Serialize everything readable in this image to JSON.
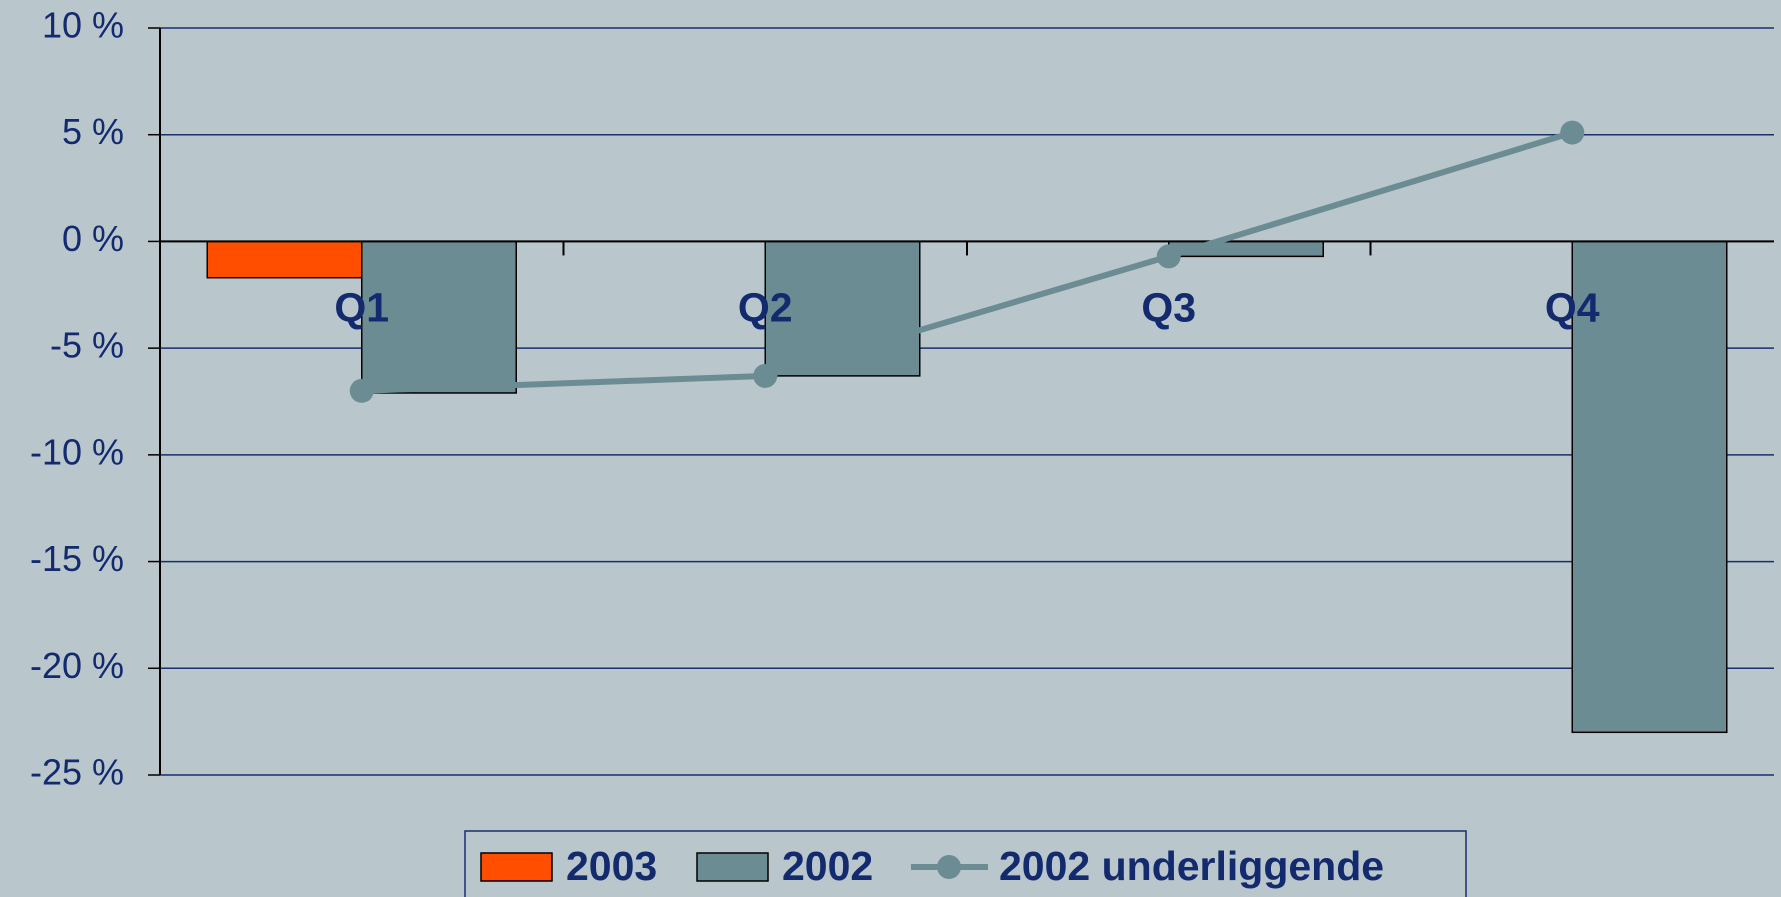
{
  "chart_data": {
    "type": "bar",
    "categories": [
      "Q1",
      "Q2",
      "Q3",
      "Q4"
    ],
    "series": [
      {
        "name": "2003",
        "type": "bar",
        "color": "#ff4e00",
        "values": [
          -1.7,
          null,
          null,
          null
        ]
      },
      {
        "name": "2002",
        "type": "bar",
        "color": "#6a8c92",
        "values": [
          -7.1,
          -6.3,
          -0.7,
          -23
        ]
      },
      {
        "name": "2002 underliggende",
        "type": "line",
        "color": "#6a8c92",
        "values": [
          -7.0,
          -6.3,
          -0.7,
          5.1
        ]
      }
    ],
    "ylim": [
      -25,
      10
    ],
    "yticks": [
      {
        "value": -25,
        "label": "-25 %"
      },
      {
        "value": -20,
        "label": "-20 %"
      },
      {
        "value": -15,
        "label": "-15 %"
      },
      {
        "value": -10,
        "label": "-10 %"
      },
      {
        "value": -5,
        "label": "-5 %"
      },
      {
        "value": 0,
        "label": "0 %"
      },
      {
        "value": 5,
        "label": "5 %"
      },
      {
        "value": 10,
        "label": "10 %"
      }
    ],
    "grid": true,
    "legend": "bottom"
  }
}
